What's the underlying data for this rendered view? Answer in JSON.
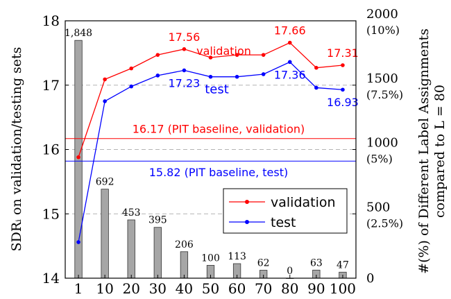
{
  "chart_data": {
    "type": "bar+line",
    "title": "",
    "x": [
      "1",
      "10",
      "20",
      "30",
      "40",
      "50",
      "60",
      "70",
      "80",
      "90",
      "100"
    ],
    "xlabel": "",
    "ylabel_left": "SDRᵢ on validation/testing sets",
    "ylabel_right_line1": "#(%) of Different Label Assignments",
    "ylabel_right_line2": "compared to L = 80",
    "ylim_left": [
      14,
      18
    ],
    "ylim_right": [
      0,
      2000
    ],
    "yticks_left": [
      "14",
      "15",
      "16",
      "17",
      "18"
    ],
    "yticks_right": [
      {
        "value": 0,
        "label": "0",
        "pct": ""
      },
      {
        "value": 500,
        "label": "500",
        "pct": "(2.5%)"
      },
      {
        "value": 1000,
        "label": "1000",
        "pct": "(5%)"
      },
      {
        "value": 1500,
        "label": "1500",
        "pct": "(7.5%)"
      },
      {
        "value": 2000,
        "label": "2000",
        "pct": "(10%)"
      }
    ],
    "grid": "dashed horizontal at 15, 16, 17",
    "bars": {
      "values": [
        1848,
        692,
        453,
        395,
        206,
        100,
        113,
        62,
        0,
        63,
        47
      ],
      "labels": [
        "1,848",
        "692",
        "453",
        "395",
        "206",
        "100",
        "113",
        "62",
        "0",
        "63",
        "47"
      ],
      "color": "#a6a6a6"
    },
    "series": [
      {
        "name": "validation",
        "color": "#ff0000",
        "values": [
          15.88,
          17.09,
          17.26,
          17.47,
          17.56,
          17.43,
          17.47,
          17.47,
          17.66,
          17.27,
          17.31
        ],
        "point_labels": [
          {
            "index": 4,
            "text": "17.56"
          },
          {
            "index": 8,
            "text": "17.66"
          },
          {
            "index": 10,
            "text": "17.31"
          }
        ],
        "inline_label": "validation"
      },
      {
        "name": "test",
        "color": "#0000ff",
        "values": [
          14.56,
          16.75,
          16.98,
          17.15,
          17.23,
          17.13,
          17.13,
          17.17,
          17.36,
          16.96,
          16.93
        ],
        "point_labels": [
          {
            "index": 4,
            "text": "17.23"
          },
          {
            "index": 8,
            "text": "17.36"
          },
          {
            "index": 10,
            "text": "16.93"
          }
        ],
        "inline_label": "test"
      }
    ],
    "baselines": [
      {
        "value": 16.17,
        "label": "16.17 (PIT baseline, validation)",
        "color": "#ff0000"
      },
      {
        "value": 15.82,
        "label": "15.82 (PIT baseline, test)",
        "color": "#0000ff"
      }
    ],
    "legend": {
      "position": "lower-right",
      "entries": [
        {
          "label": "validation",
          "color": "#ff0000"
        },
        {
          "label": "test",
          "color": "#0000ff"
        }
      ]
    }
  }
}
